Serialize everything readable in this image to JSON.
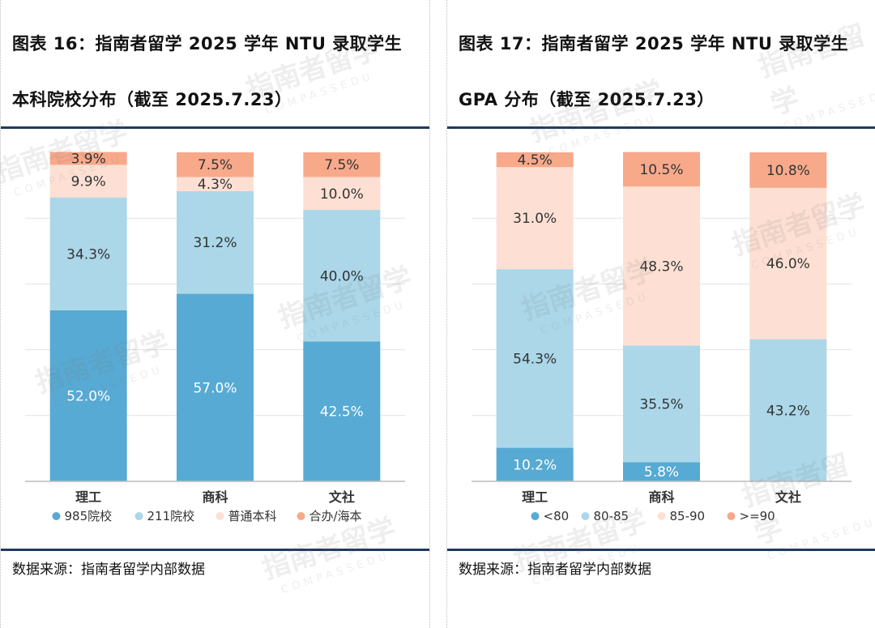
{
  "left": {
    "title_line1": "图表 16：指南者留学 2025 学年 NTU 录取学生",
    "title_line2": "本科院校分布（截至 2025.7.23）",
    "source": "数据来源：指南者留学内部数据"
  },
  "right": {
    "title_line1": "图表 17：指南者留学 2025 学年 NTU 录取学生",
    "title_line2": "GPA 分布（截至 2025.7.23）",
    "source": "数据来源：指南者留学内部数据"
  },
  "watermark": {
    "cn": "指南者留学",
    "en": "COMPASSEDU"
  },
  "chart_data": [
    {
      "type": "bar",
      "stacked": true,
      "normalized": true,
      "categories": [
        "理工",
        "商科",
        "文社"
      ],
      "series": [
        {
          "name": "985院校",
          "color": "#57aad3",
          "values": [
            52.0,
            57.0,
            42.5
          ],
          "labels": [
            "52.0%",
            "57.0%",
            "42.5%"
          ]
        },
        {
          "name": "211院校",
          "color": "#abd7e9",
          "values": [
            34.3,
            31.2,
            40.0
          ],
          "labels": [
            "34.3%",
            "31.2%",
            "40.0%"
          ]
        },
        {
          "name": "普通本科",
          "color": "#fde0d3",
          "values": [
            9.9,
            4.3,
            10.0
          ],
          "labels": [
            "9.9%",
            "4.3%",
            "10.0%"
          ]
        },
        {
          "name": "合办/海本",
          "color": "#f7a98a",
          "values": [
            3.9,
            7.5,
            7.5
          ],
          "labels": [
            "3.9%",
            "7.5%",
            "7.5%"
          ]
        }
      ],
      "ylim": [
        0,
        100
      ],
      "grid": true,
      "legend": "bottom"
    },
    {
      "type": "bar",
      "stacked": true,
      "normalized": true,
      "categories": [
        "理工",
        "商科",
        "文社"
      ],
      "series": [
        {
          "name": "<80",
          "color": "#57aad3",
          "values": [
            10.2,
            5.8,
            0
          ],
          "labels": [
            "10.2%",
            "5.8%",
            ""
          ]
        },
        {
          "name": "80-85",
          "color": "#abd7e9",
          "values": [
            54.3,
            35.5,
            43.2
          ],
          "labels": [
            "54.3%",
            "35.5%",
            "43.2%"
          ]
        },
        {
          "name": "85-90",
          "color": "#fde0d3",
          "values": [
            31.0,
            48.3,
            46.0
          ],
          "labels": [
            "31.0%",
            "48.3%",
            "46.0%"
          ]
        },
        {
          "name": ">=90",
          "color": "#f7a98a",
          "values": [
            4.5,
            10.5,
            10.8
          ],
          "labels": [
            "4.5%",
            "10.5%",
            "10.8%"
          ]
        }
      ],
      "ylim": [
        0,
        100
      ],
      "grid": true,
      "legend": "bottom"
    }
  ]
}
